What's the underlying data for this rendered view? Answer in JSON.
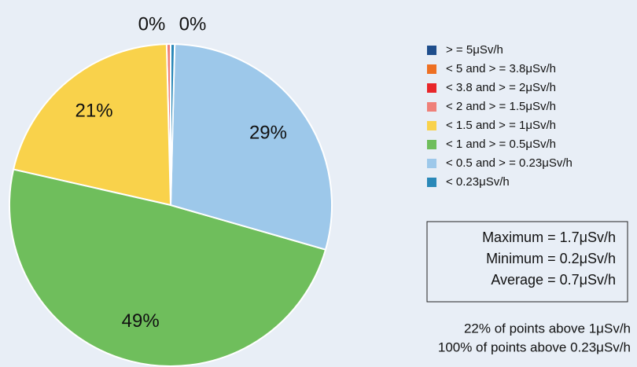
{
  "chart_data": {
    "type": "pie",
    "categories": [
      "> = 5μSv/h",
      "< 5 and > = 3.8μSv/h",
      "< 3.8 and > = 2μSv/h",
      "< 2 and > = 1.5μSv/h",
      "< 1.5 and > = 1μSv/h",
      "< 1 and > = 0.5μSv/h",
      "< 0.5 and > = 0.23μSv/h",
      "< 0.23μSv/h"
    ],
    "values": [
      0,
      0,
      0,
      0.4,
      21,
      49,
      29,
      0.4
    ],
    "value_labels": [
      null,
      null,
      null,
      "0%",
      "21%",
      "49%",
      "29%",
      "0%"
    ],
    "colors": [
      "#1f4e8c",
      "#ee7023",
      "#e8262a",
      "#ef8079",
      "#f9d24b",
      "#6fbe5c",
      "#9dc8ea",
      "#2a88b8"
    ],
    "direction": "counterclockwise",
    "stats": [
      "Maximum = 1.7μSv/h",
      "Minimum = 0.2μSv/h",
      "Average = 0.7μSv/h"
    ],
    "notes": [
      "22% of points above 1μSv/h",
      "100% of points above 0.23μSv/h"
    ]
  }
}
